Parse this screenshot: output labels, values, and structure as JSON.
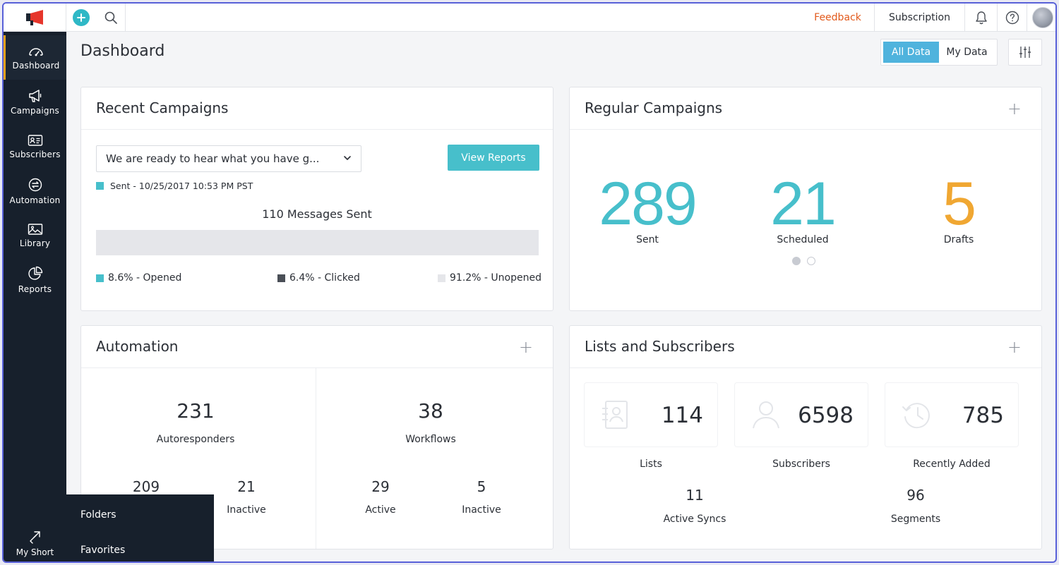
{
  "topbar": {
    "feedback": "Feedback",
    "subscription": "Subscription"
  },
  "sidebar": {
    "items": [
      {
        "label": "Dashboard",
        "icon": "speedometer-icon",
        "active": true
      },
      {
        "label": "Campaigns",
        "icon": "megaphone-icon"
      },
      {
        "label": "Subscribers",
        "icon": "contact-card-icon"
      },
      {
        "label": "Automation",
        "icon": "automation-icon"
      },
      {
        "label": "Library",
        "icon": "image-library-icon"
      },
      {
        "label": "Reports",
        "icon": "pie-chart-icon"
      }
    ],
    "my_short": "My Short"
  },
  "shortcuts": {
    "folders": "Folders",
    "favorites": "Favorites"
  },
  "page": {
    "title": "Dashboard",
    "toggle": {
      "all": "All Data",
      "mine": "My Data",
      "selected": "All Data"
    }
  },
  "recent_campaigns": {
    "title": "Recent Campaigns",
    "selected_campaign": "We are ready to hear what you have g...",
    "view_reports": "View Reports",
    "sent_status": "Sent - 10/25/2017 10:53 PM PST",
    "messages_sent": "110 Messages Sent",
    "bar": {
      "opened": 0,
      "clicked": 0,
      "unopened": 1
    },
    "legend": {
      "opened": "8.6% - Opened",
      "clicked": "6.4% - Clicked",
      "unopened": "91.2% - Unopened"
    },
    "colors": {
      "opened": "#47bfcb",
      "clicked": "#4a4f57",
      "unopened": "#e5e6ea",
      "status": "#47bfcb"
    }
  },
  "regular_campaigns": {
    "title": "Regular Campaigns",
    "sent": "289",
    "sent_label": "Sent",
    "scheduled": "21",
    "scheduled_label": "Scheduled",
    "drafts": "5",
    "drafts_label": "Drafts",
    "colors": {
      "sent": "#47bfcb",
      "scheduled": "#47bfcb",
      "drafts": "#f0a732"
    }
  },
  "automation": {
    "title": "Automation",
    "autoresponders": "231",
    "autoresponders_label": "Autoresponders",
    "ar_active": "209",
    "ar_inactive": "21",
    "ar_inactive_label": "Inactive",
    "workflows": "38",
    "workflows_label": "Workflows",
    "wf_active": "29",
    "wf_active_label": "Active",
    "wf_inactive": "5",
    "wf_inactive_label": "Inactive"
  },
  "lists": {
    "title": "Lists and Subscribers",
    "lists_count": "114",
    "lists_label": "Lists",
    "subscribers_count": "6598",
    "subscribers_label": "Subscribers",
    "recent_count": "785",
    "recent_label": "Recently Added",
    "syncs_count": "11",
    "syncs_label": "Active Syncs",
    "segments_count": "96",
    "segments_label": "Segments"
  }
}
